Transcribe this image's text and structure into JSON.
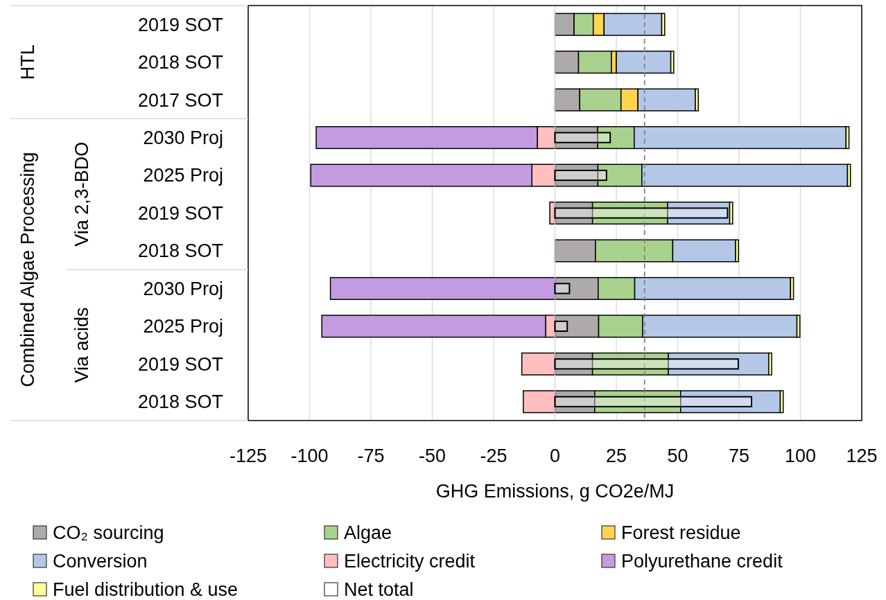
{
  "chart_data": [
    {
      "type": "bar",
      "orientation": "horizontal",
      "stacked": true,
      "categories": [
        "2019 SOT",
        "2018 SOT",
        "2017 SOT",
        "2030 Proj",
        "2025 Proj",
        "2019 SOT",
        "2018 SOT",
        "2030 Proj",
        "2025 Proj",
        "2019 SOT",
        "2018 SOT"
      ],
      "series": [
        {
          "name": "CO₂ sourcing",
          "color": "#aeaaaa",
          "values": [
            7.8,
            9.6,
            10.1,
            17.4,
            17.5,
            15.3,
            16.5,
            17.6,
            17.8,
            15.3,
            16.2
          ]
        },
        {
          "name": "Algae",
          "color": "#a9d18e",
          "values": [
            7.8,
            13.4,
            16.8,
            14.9,
            17.9,
            30.6,
            31.5,
            14.9,
            17.9,
            30.9,
            35
          ]
        },
        {
          "name": "Forest residue",
          "color": "#ffd44f",
          "values": [
            4.4,
            2,
            6.9,
            null,
            null,
            null,
            null,
            null,
            null,
            null,
            null
          ]
        },
        {
          "name": "Conversion",
          "color": "#b4c7e7",
          "values": [
            23.5,
            22.2,
            23.4,
            86.3,
            83.8,
            25.3,
            25.6,
            63.5,
            62.9,
            40.9,
            40.6
          ]
        },
        {
          "name": "Electricity credit",
          "color": "#ffbfbf",
          "values": [
            null,
            null,
            null,
            -7.2,
            -9.4,
            -2.1,
            null,
            null,
            -3.8,
            -13.5,
            -12.9
          ]
        },
        {
          "name": "Polyurethane credit",
          "color": "#c39be0",
          "values": [
            null,
            null,
            null,
            -90.1,
            -90.1,
            null,
            null,
            -91.5,
            -91.2,
            null,
            null
          ]
        },
        {
          "name": "Fuel distribution & use",
          "color": "#ffff99",
          "values": [
            1.2,
            1.2,
            1.2,
            1.2,
            1.2,
            1.2,
            1.2,
            1.2,
            1.2,
            1.2,
            1.2
          ]
        }
      ],
      "xlabel": "GHG Emissions, g CO2e/MJ",
      "xlim": [
        -125,
        125
      ],
      "xticks": [
        -125,
        -100,
        -75,
        -50,
        -25,
        0,
        25,
        50,
        75,
        100,
        125
      ],
      "grid": "x",
      "legend": "bottom",
      "ref_lines": [
        {
          "axis": "x",
          "value": 36.5,
          "color": "#808080",
          "line_style": "dashed"
        }
      ],
      "annotations": [
        "HTL",
        "Combined Algae Processing",
        "Via 2,3-BDO",
        "Via acids"
      ]
    },
    {
      "type": "bar",
      "orientation": "horizontal",
      "categories": [
        null,
        null,
        null,
        null,
        null,
        null,
        null,
        null,
        null,
        null,
        null
      ],
      "series": [
        {
          "name": "Net total",
          "color": "#ffffff",
          "values": [
            null,
            null,
            null,
            22.5,
            21,
            70.3,
            null,
            5.9,
            5,
            74.7,
            80.1
          ]
        }
      ],
      "xlim": [
        -125,
        125
      ],
      "tick_labels": false,
      "legend": "bottom"
    }
  ]
}
